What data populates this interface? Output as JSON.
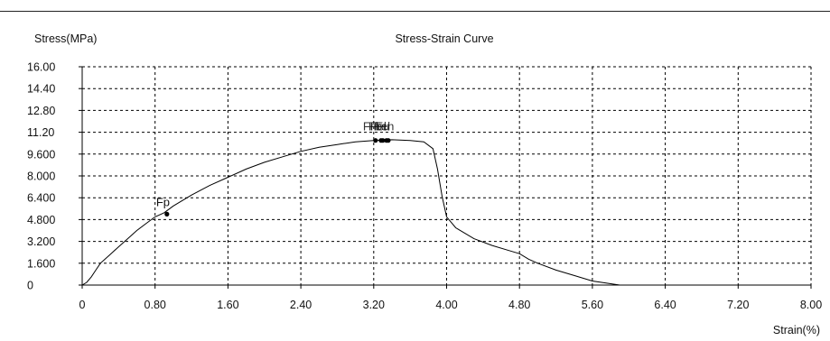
{
  "chart_data": {
    "type": "line",
    "title": "Stress-Strain Curve",
    "ylabel": "Stress(MPa)",
    "xlabel": "Strain(%)",
    "xlim": [
      0,
      8
    ],
    "ylim": [
      0,
      16
    ],
    "grid": true,
    "xticks": [
      0,
      0.8,
      1.6,
      2.4,
      3.2,
      4.0,
      4.8,
      5.6,
      6.4,
      7.2,
      8.0
    ],
    "xtick_labels": [
      "0",
      "0.80",
      "1.60",
      "2.40",
      "3.20",
      "4.00",
      "4.80",
      "5.60",
      "6.40",
      "7.20",
      "8.00"
    ],
    "yticks": [
      0,
      1.6,
      3.2,
      4.8,
      6.4,
      8.0,
      9.6,
      11.2,
      12.8,
      14.4,
      16.0
    ],
    "ytick_labels": [
      "0",
      "1.600",
      "3.200",
      "4.800",
      "6.400",
      "8.000",
      "9.600",
      "11.20",
      "12.80",
      "14.40",
      "16.00"
    ],
    "series": [
      {
        "color": "#000000",
        "x": [
          0,
          0.05,
          0.1,
          0.15,
          0.2,
          0.3,
          0.4,
          0.5,
          0.6,
          0.7,
          0.8,
          0.9,
          1.0,
          1.2,
          1.4,
          1.6,
          1.8,
          2.0,
          2.2,
          2.4,
          2.6,
          2.8,
          3.0,
          3.2,
          3.4,
          3.6,
          3.75,
          3.85,
          3.9,
          3.95,
          4.0,
          4.1,
          4.3,
          4.5,
          4.7,
          4.8,
          4.9,
          5.0,
          5.2,
          5.4,
          5.6,
          5.8,
          5.9
        ],
        "y": [
          0,
          0.2,
          0.6,
          1.1,
          1.6,
          2.2,
          2.8,
          3.4,
          4.0,
          4.5,
          5.0,
          5.3,
          5.8,
          6.6,
          7.3,
          7.9,
          8.5,
          9.0,
          9.4,
          9.8,
          10.1,
          10.3,
          10.5,
          10.6,
          10.65,
          10.6,
          10.5,
          10.0,
          8.5,
          6.5,
          5.0,
          4.2,
          3.4,
          2.9,
          2.5,
          2.3,
          1.9,
          1.6,
          1.1,
          0.7,
          0.3,
          0.1,
          0
        ]
      }
    ],
    "markers": [
      {
        "label": "Fp",
        "x": 0.93,
        "y": 5.2
      },
      {
        "label": "Fm",
        "x": 3.22,
        "y": 10.6
      },
      {
        "label": "Fb",
        "x": 3.28,
        "y": 10.6
      },
      {
        "label": "Feh",
        "x": 3.34,
        "y": 10.6
      },
      {
        "label": "Fel",
        "x": 3.3,
        "y": 10.6
      },
      {
        "label": "Fu",
        "x": 3.36,
        "y": 10.6
      }
    ]
  }
}
